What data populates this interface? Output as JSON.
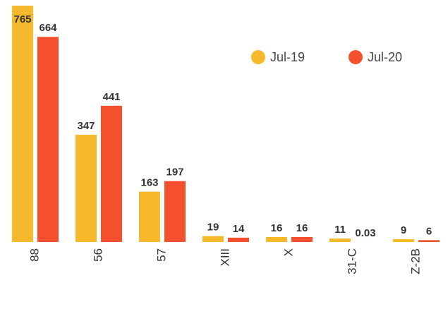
{
  "chart_data": {
    "type": "bar",
    "categories": [
      "88",
      "56",
      "57",
      "XIII",
      "X",
      "31-C",
      "Z-2B"
    ],
    "series": [
      {
        "name": "Jul-19",
        "color": "#F6B92B",
        "values": [
          765,
          347,
          163,
          19,
          16,
          11,
          9
        ]
      },
      {
        "name": "Jul-20",
        "color": "#F5502E",
        "values": [
          664,
          441,
          197,
          14,
          16,
          0.03,
          6
        ]
      }
    ],
    "legend": "top-right"
  }
}
